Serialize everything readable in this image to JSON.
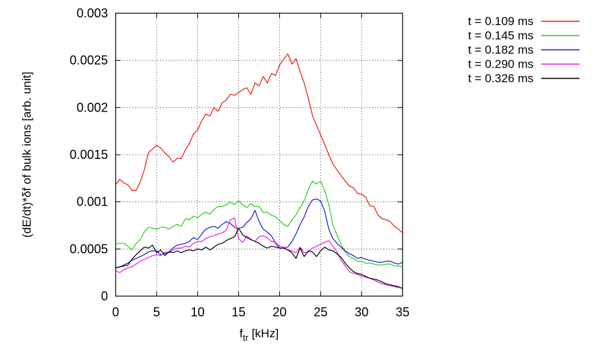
{
  "chart_data": {
    "type": "line",
    "title": "",
    "xlabel": "f",
    "xlabel_sub": "tr",
    "xlabel_unit": " [kHz]",
    "ylabel": "(dE/dt)*δf of bulk ions [arb. unit]",
    "xlim": [
      0,
      35
    ],
    "ylim": [
      0,
      0.003
    ],
    "xticks": [
      0,
      5,
      10,
      15,
      20,
      25,
      30,
      35
    ],
    "xtick_labels": [
      "0",
      "5",
      "10",
      "15",
      "20",
      "25",
      "30",
      "35"
    ],
    "yticks": [
      0,
      0.0005,
      0.001,
      0.0015,
      0.002,
      0.0025,
      0.003
    ],
    "ytick_labels": [
      "0",
      "0.0005",
      "0.001",
      "0.0015",
      "0.002",
      "0.0025",
      "0.003"
    ],
    "grid": true,
    "grid_style": "dotted",
    "legend_position": "outside-top-right",
    "series": [
      {
        "name": "t = 0.109 ms",
        "color": "#e8190f",
        "x": [
          0,
          0.5,
          1,
          1.5,
          2,
          2.5,
          3,
          3.5,
          4,
          4.5,
          5,
          5.5,
          6,
          6.5,
          7,
          7.5,
          8,
          8.5,
          9,
          9.5,
          10,
          10.5,
          11,
          11.5,
          12,
          12.5,
          13,
          13.5,
          14,
          14.5,
          15,
          15.5,
          16,
          16.5,
          17,
          17.5,
          18,
          18.5,
          19,
          19.5,
          20,
          20.5,
          21,
          21.5,
          22,
          22.5,
          23,
          23.5,
          24,
          24.5,
          25,
          25.5,
          26,
          26.5,
          27,
          27.5,
          28,
          28.5,
          29,
          29.5,
          30,
          30.5,
          31,
          31.5,
          32,
          32.5,
          33,
          33.5,
          34,
          34.5,
          35
        ],
        "values": [
          0.00118,
          0.00124,
          0.0012,
          0.00118,
          0.00112,
          0.00112,
          0.00121,
          0.00134,
          0.00152,
          0.00156,
          0.0016,
          0.00157,
          0.00152,
          0.00148,
          0.00142,
          0.00146,
          0.00146,
          0.00155,
          0.00162,
          0.00172,
          0.00176,
          0.00186,
          0.00193,
          0.00191,
          0.002,
          0.00196,
          0.00205,
          0.00208,
          0.00214,
          0.00213,
          0.00216,
          0.00219,
          0.00221,
          0.00214,
          0.00226,
          0.00223,
          0.00233,
          0.00226,
          0.00236,
          0.00234,
          0.00245,
          0.00251,
          0.00257,
          0.00246,
          0.00252,
          0.00238,
          0.00226,
          0.0021,
          0.00192,
          0.00181,
          0.00171,
          0.00161,
          0.0015,
          0.0014,
          0.00134,
          0.00128,
          0.00122,
          0.00117,
          0.00115,
          0.00109,
          0.00108,
          0.00105,
          0.00096,
          0.00095,
          0.00086,
          0.00082,
          0.00081,
          0.00079,
          0.00074,
          0.00071,
          0.00067
        ]
      },
      {
        "name": "t = 0.145 ms",
        "color": "#22cc22",
        "x": [
          0,
          0.5,
          1,
          1.5,
          2,
          2.5,
          3,
          3.5,
          4,
          4.5,
          5,
          5.5,
          6,
          6.5,
          7,
          7.5,
          8,
          8.5,
          9,
          9.5,
          10,
          10.5,
          11,
          11.5,
          12,
          12.5,
          13,
          13.5,
          14,
          14.5,
          15,
          15.5,
          16,
          16.5,
          17,
          17.5,
          18,
          18.5,
          19,
          19.5,
          20,
          20.5,
          21,
          21.5,
          22,
          22.5,
          23,
          23.5,
          24,
          24.5,
          25,
          25.5,
          26,
          26.5,
          27,
          27.5,
          28,
          28.5,
          29,
          29.5,
          30,
          30.5,
          31,
          31.5,
          32,
          32.5,
          33,
          33.5,
          34,
          34.5,
          35
        ],
        "values": [
          0.00055,
          0.00056,
          0.00056,
          0.00053,
          0.00049,
          0.00056,
          0.0006,
          0.00068,
          0.00073,
          0.00072,
          0.00071,
          0.00073,
          0.00073,
          0.00071,
          0.00074,
          0.00076,
          0.00074,
          0.00082,
          0.00081,
          0.00085,
          0.00083,
          0.00087,
          0.00089,
          0.00087,
          0.00092,
          0.00095,
          0.00095,
          0.00097,
          0.001,
          0.00097,
          0.00101,
          0.00097,
          0.00094,
          0.00098,
          0.00095,
          0.00095,
          0.00089,
          0.00089,
          0.00086,
          0.00084,
          0.0008,
          0.00076,
          0.00074,
          0.00081,
          0.00086,
          0.00094,
          0.00101,
          0.00113,
          0.00122,
          0.00119,
          0.00122,
          0.00112,
          0.00097,
          0.00075,
          0.00065,
          0.00055,
          0.00047,
          0.00042,
          0.0004,
          0.00037,
          0.00037,
          0.00035,
          0.00035,
          0.00034,
          0.00033,
          0.00033,
          0.00034,
          0.00034,
          0.00032,
          0.00032,
          0.00031
        ]
      },
      {
        "name": "t = 0.182 ms",
        "color": "#1a1acc",
        "x": [
          0,
          0.5,
          1,
          1.5,
          2,
          2.5,
          3,
          3.5,
          4,
          4.5,
          5,
          5.5,
          6,
          6.5,
          7,
          7.5,
          8,
          8.5,
          9,
          9.5,
          10,
          10.5,
          11,
          11.5,
          12,
          12.5,
          13,
          13.5,
          14,
          14.5,
          15,
          15.5,
          16,
          16.5,
          17,
          17.5,
          18,
          18.5,
          19,
          19.5,
          20,
          20.5,
          21,
          21.5,
          22,
          22.5,
          23,
          23.5,
          24,
          24.5,
          25,
          25.5,
          26,
          26.5,
          27,
          27.5,
          28,
          28.5,
          29,
          29.5,
          30,
          30.5,
          31,
          31.5,
          32,
          32.5,
          33,
          33.5,
          34,
          34.5,
          35
        ],
        "values": [
          0.0003,
          0.00031,
          0.00033,
          0.00035,
          0.00038,
          0.0004,
          0.00042,
          0.00044,
          0.00047,
          0.00048,
          0.00048,
          0.00044,
          0.00045,
          0.00047,
          0.00051,
          0.00054,
          0.00055,
          0.00056,
          0.00058,
          0.00062,
          0.0006,
          0.00066,
          0.00071,
          0.00073,
          0.00074,
          0.00072,
          0.00076,
          0.00079,
          0.00077,
          0.00073,
          0.00072,
          0.00073,
          0.00078,
          0.00082,
          0.00091,
          0.00079,
          0.00071,
          0.00068,
          0.00064,
          0.00056,
          0.00051,
          0.00051,
          0.00052,
          0.00058,
          0.00066,
          0.00076,
          0.00084,
          0.00095,
          0.00102,
          0.00103,
          0.00101,
          0.0009,
          0.00071,
          0.00061,
          0.00056,
          0.00052,
          0.00048,
          0.00045,
          0.00043,
          0.0004,
          0.00041,
          0.00039,
          0.00038,
          0.00037,
          0.00036,
          0.00036,
          0.00037,
          0.00037,
          0.00035,
          0.00034,
          0.00036
        ]
      },
      {
        "name": "t = 0.290 ms",
        "color": "#e020e0",
        "x": [
          0,
          0.5,
          1,
          1.5,
          2,
          2.5,
          3,
          3.5,
          4,
          4.5,
          5,
          5.5,
          6,
          6.5,
          7,
          7.5,
          8,
          8.5,
          9,
          9.5,
          10,
          10.5,
          11,
          11.5,
          12,
          12.5,
          13,
          13.5,
          14,
          14.5,
          15,
          15.5,
          16,
          16.5,
          17,
          17.5,
          18,
          18.5,
          19,
          19.5,
          20,
          20.5,
          21,
          21.5,
          22,
          22.5,
          23,
          23.5,
          24,
          24.5,
          25,
          25.5,
          26,
          26.5,
          27,
          27.5,
          28,
          28.5,
          29,
          29.5,
          30,
          30.5,
          31,
          31.5,
          32,
          32.5,
          33,
          33.5,
          34,
          34.5,
          35
        ],
        "values": [
          0.00027,
          0.00025,
          0.00028,
          0.0003,
          0.00031,
          0.00034,
          0.00037,
          0.00039,
          0.00041,
          0.00043,
          0.00044,
          0.00043,
          0.00047,
          0.00046,
          0.00049,
          0.00051,
          0.00051,
          0.00053,
          0.00052,
          0.00056,
          0.00058,
          0.00058,
          0.00061,
          0.00063,
          0.00064,
          0.00066,
          0.00067,
          0.0007,
          0.00081,
          0.00083,
          0.00061,
          0.00057,
          0.00064,
          0.0006,
          0.00058,
          0.00063,
          0.00064,
          0.00062,
          0.00058,
          0.00057,
          0.00053,
          0.00052,
          0.00049,
          0.00048,
          0.00046,
          0.00052,
          0.00046,
          0.00047,
          0.00051,
          0.00053,
          0.00055,
          0.00057,
          0.00059,
          0.00053,
          0.00047,
          0.00038,
          0.00032,
          0.00026,
          0.00024,
          0.00023,
          0.00021,
          0.0002,
          0.00019,
          0.00017,
          0.00015,
          0.00013,
          0.00012,
          0.00011,
          0.0001,
          9e-05,
          9e-05
        ]
      },
      {
        "name": "t = 0.326 ms",
        "color": "#000000",
        "x": [
          0,
          0.5,
          1,
          1.5,
          2,
          2.5,
          3,
          3.5,
          4,
          4.5,
          5,
          5.5,
          6,
          6.5,
          7,
          7.5,
          8,
          8.5,
          9,
          9.5,
          10,
          10.5,
          11,
          11.5,
          12,
          12.5,
          13,
          13.5,
          14,
          14.5,
          15,
          15.5,
          16,
          16.5,
          17,
          17.5,
          18,
          18.5,
          19,
          19.5,
          20,
          20.5,
          21,
          21.5,
          22,
          22.5,
          23,
          23.5,
          24,
          24.5,
          25,
          25.5,
          26,
          26.5,
          27,
          27.5,
          28,
          28.5,
          29,
          29.5,
          30,
          30.5,
          31,
          31.5,
          32,
          32.5,
          33,
          33.5,
          34,
          34.5,
          35
        ],
        "values": [
          0.0003,
          0.00031,
          0.00032,
          0.00033,
          0.00039,
          0.00044,
          0.00048,
          0.00052,
          0.00051,
          0.00054,
          0.00046,
          0.00049,
          0.00043,
          0.00047,
          0.00046,
          0.00048,
          0.00046,
          0.00048,
          0.00049,
          0.00048,
          0.0005,
          0.00049,
          0.00052,
          0.00049,
          0.00052,
          0.00055,
          0.00056,
          0.00059,
          0.00061,
          0.00063,
          0.00072,
          0.00065,
          0.00062,
          0.0006,
          0.00058,
          0.00056,
          0.00053,
          0.00051,
          0.00053,
          0.00052,
          0.00051,
          0.00051,
          0.00049,
          0.00046,
          0.0004,
          0.00051,
          0.00042,
          0.00048,
          0.00047,
          0.00042,
          0.00048,
          0.00052,
          0.00049,
          0.00048,
          0.00045,
          0.00041,
          0.00035,
          0.0003,
          0.00026,
          0.00024,
          0.00023,
          0.00021,
          0.00019,
          0.00018,
          0.00017,
          0.00015,
          0.00013,
          0.00012,
          0.00011,
          0.0001,
          8e-05
        ]
      }
    ]
  }
}
